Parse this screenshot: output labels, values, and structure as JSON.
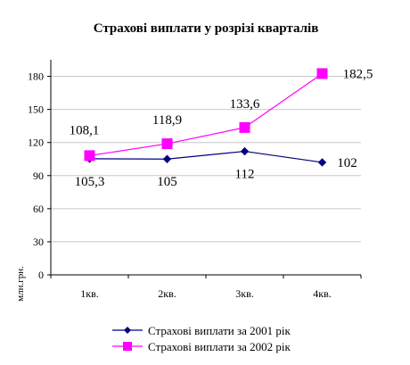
{
  "chart_data": {
    "type": "line",
    "title": "Страхові виплати у розрізі кварталів",
    "xlabel": "",
    "ylabel": "млн.грн.",
    "categories": [
      "1кв.",
      "2кв.",
      "3кв.",
      "4кв."
    ],
    "ylim": [
      0,
      195
    ],
    "yticks": [
      0,
      30,
      60,
      90,
      120,
      150,
      180
    ],
    "grid": true,
    "legend_position": "bottom",
    "series": [
      {
        "name": "Страхові виплати за 2001 рік",
        "values": [
          105.3,
          105,
          112,
          102
        ],
        "labels": [
          "105,3",
          "105",
          "112",
          "102"
        ],
        "color": "#000080",
        "marker": "diamond"
      },
      {
        "name": "Страхові виплати за 2002 рік",
        "values": [
          108.1,
          118.9,
          133.6,
          182.5
        ],
        "labels": [
          "108,1",
          "118,9",
          "133,6",
          "182,5"
        ],
        "color": "#ff00ff",
        "marker": "square"
      }
    ]
  }
}
